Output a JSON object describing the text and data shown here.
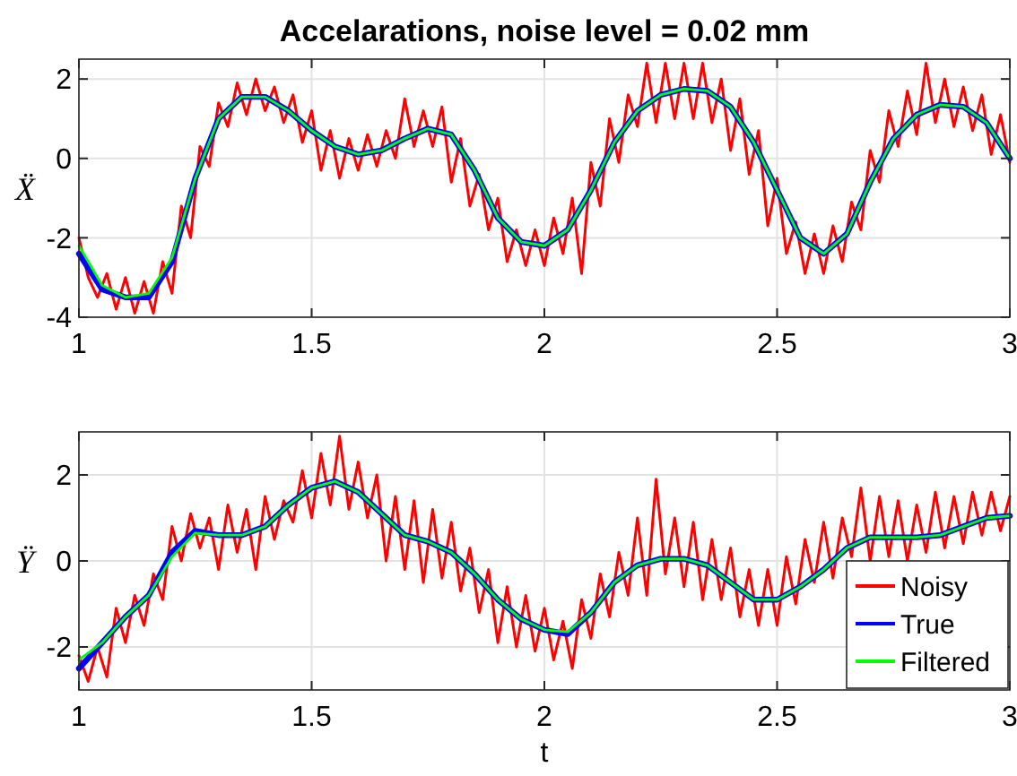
{
  "chart_data": [
    {
      "type": "line",
      "title": "Accelarations, noise level = 0.02 mm",
      "ylabel": "Ẍ",
      "xlim": [
        1,
        3
      ],
      "ylim": [
        -4,
        2.5
      ],
      "xticks": [
        1,
        1.5,
        2,
        2.5,
        3
      ],
      "yticks": [
        -4,
        -2,
        0,
        2
      ],
      "grid": true,
      "legend": false,
      "x": [
        1.0,
        1.05,
        1.1,
        1.15,
        1.2,
        1.25,
        1.3,
        1.35,
        1.4,
        1.45,
        1.5,
        1.55,
        1.6,
        1.65,
        1.7,
        1.75,
        1.8,
        1.85,
        1.9,
        1.95,
        2.0,
        2.05,
        2.1,
        2.15,
        2.2,
        2.25,
        2.3,
        2.35,
        2.4,
        2.45,
        2.5,
        2.55,
        2.6,
        2.65,
        2.7,
        2.75,
        2.8,
        2.85,
        2.9,
        2.95,
        3.0
      ],
      "series": [
        {
          "color": "#ff0000",
          "x": [
            1.0,
            1.02,
            1.04,
            1.06,
            1.08,
            1.1,
            1.12,
            1.14,
            1.16,
            1.18,
            1.2,
            1.22,
            1.24,
            1.26,
            1.28,
            1.3,
            1.32,
            1.34,
            1.36,
            1.38,
            1.4,
            1.42,
            1.44,
            1.46,
            1.48,
            1.5,
            1.52,
            1.54,
            1.56,
            1.58,
            1.6,
            1.62,
            1.64,
            1.66,
            1.68,
            1.7,
            1.72,
            1.74,
            1.76,
            1.78,
            1.8,
            1.82,
            1.84,
            1.86,
            1.88,
            1.9,
            1.92,
            1.94,
            1.96,
            1.98,
            2.0,
            2.02,
            2.04,
            2.06,
            2.08,
            2.1,
            2.12,
            2.14,
            2.16,
            2.18,
            2.2,
            2.22,
            2.24,
            2.26,
            2.28,
            2.3,
            2.32,
            2.34,
            2.36,
            2.38,
            2.4,
            2.42,
            2.44,
            2.46,
            2.48,
            2.5,
            2.52,
            2.54,
            2.56,
            2.58,
            2.6,
            2.62,
            2.64,
            2.66,
            2.68,
            2.7,
            2.72,
            2.74,
            2.76,
            2.78,
            2.8,
            2.82,
            2.84,
            2.86,
            2.88,
            2.9,
            2.92,
            2.94,
            2.96,
            2.98,
            3.0
          ],
          "values": [
            -2.0,
            -3.0,
            -3.5,
            -2.9,
            -3.8,
            -3.0,
            -3.9,
            -3.1,
            -3.9,
            -2.6,
            -3.4,
            -1.2,
            -2.0,
            0.3,
            -0.2,
            1.4,
            0.8,
            1.9,
            1.1,
            2.0,
            1.2,
            1.8,
            0.9,
            1.6,
            0.4,
            1.2,
            -0.3,
            0.7,
            -0.5,
            0.5,
            -0.3,
            0.6,
            -0.2,
            0.7,
            0.0,
            1.5,
            0.3,
            1.2,
            0.3,
            1.3,
            -0.6,
            0.5,
            -1.2,
            -0.4,
            -1.8,
            -1.0,
            -2.6,
            -1.8,
            -2.7,
            -1.8,
            -2.7,
            -1.5,
            -2.4,
            -1.0,
            -2.9,
            -0.1,
            -1.2,
            1.0,
            -0.1,
            1.6,
            0.8,
            2.4,
            0.9,
            2.4,
            1.0,
            2.4,
            1.0,
            2.4,
            0.9,
            2.0,
            0.2,
            1.5,
            -0.4,
            0.7,
            -1.7,
            -0.5,
            -2.4,
            -1.6,
            -2.9,
            -1.9,
            -2.9,
            -1.7,
            -2.6,
            -1.1,
            -1.8,
            0.2,
            -0.6,
            1.2,
            0.3,
            1.7,
            0.6,
            2.4,
            0.9,
            2.0,
            0.8,
            1.8,
            0.7,
            1.6,
            0.1,
            1.1,
            -0.1
          ]
        },
        {
          "color": "#0000ff",
          "values": [
            -2.4,
            -3.3,
            -3.5,
            -3.5,
            -2.6,
            -0.5,
            1.0,
            1.55,
            1.55,
            1.2,
            0.7,
            0.3,
            0.1,
            0.2,
            0.5,
            0.75,
            0.6,
            -0.3,
            -1.5,
            -2.1,
            -2.2,
            -1.8,
            -0.8,
            0.4,
            1.2,
            1.6,
            1.75,
            1.7,
            1.3,
            0.4,
            -0.8,
            -2.0,
            -2.4,
            -1.9,
            -0.6,
            0.5,
            1.1,
            1.35,
            1.3,
            0.9,
            0.0
          ]
        },
        {
          "color": "#00ff00",
          "values": [
            -2.2,
            -3.2,
            -3.5,
            -3.4,
            -2.5,
            -0.5,
            1.0,
            1.55,
            1.55,
            1.2,
            0.7,
            0.3,
            0.1,
            0.2,
            0.5,
            0.75,
            0.6,
            -0.3,
            -1.5,
            -2.1,
            -2.2,
            -1.8,
            -0.8,
            0.4,
            1.2,
            1.6,
            1.75,
            1.7,
            1.3,
            0.4,
            -0.8,
            -2.0,
            -2.4,
            -1.9,
            -0.6,
            0.5,
            1.1,
            1.35,
            1.3,
            0.9,
            0.0
          ]
        }
      ]
    },
    {
      "type": "line",
      "xlabel": "t",
      "ylabel": "Ÿ",
      "xlim": [
        1,
        3
      ],
      "ylim": [
        -3,
        3
      ],
      "xticks": [
        1,
        1.5,
        2,
        2.5,
        3
      ],
      "yticks": [
        -2,
        0,
        2
      ],
      "grid": true,
      "legend": "bottom right",
      "x": [
        1.0,
        1.05,
        1.1,
        1.15,
        1.2,
        1.25,
        1.3,
        1.35,
        1.4,
        1.45,
        1.5,
        1.55,
        1.6,
        1.65,
        1.7,
        1.75,
        1.8,
        1.85,
        1.9,
        1.95,
        2.0,
        2.05,
        2.1,
        2.15,
        2.2,
        2.25,
        2.3,
        2.35,
        2.4,
        2.45,
        2.5,
        2.55,
        2.6,
        2.65,
        2.7,
        2.75,
        2.8,
        2.85,
        2.9,
        2.95,
        3.0
      ],
      "series": [
        {
          "name": "Noisy",
          "color": "#ff0000",
          "x": [
            1.0,
            1.02,
            1.04,
            1.06,
            1.08,
            1.1,
            1.12,
            1.14,
            1.16,
            1.18,
            1.2,
            1.22,
            1.24,
            1.26,
            1.28,
            1.3,
            1.32,
            1.34,
            1.36,
            1.38,
            1.4,
            1.42,
            1.44,
            1.46,
            1.48,
            1.5,
            1.52,
            1.54,
            1.56,
            1.58,
            1.6,
            1.62,
            1.64,
            1.66,
            1.68,
            1.7,
            1.72,
            1.74,
            1.76,
            1.78,
            1.8,
            1.82,
            1.84,
            1.86,
            1.88,
            1.9,
            1.92,
            1.94,
            1.96,
            1.98,
            2.0,
            2.02,
            2.04,
            2.06,
            2.08,
            2.1,
            2.12,
            2.14,
            2.16,
            2.18,
            2.2,
            2.22,
            2.24,
            2.26,
            2.28,
            2.3,
            2.32,
            2.34,
            2.36,
            2.38,
            2.4,
            2.42,
            2.44,
            2.46,
            2.48,
            2.5,
            2.52,
            2.54,
            2.56,
            2.58,
            2.6,
            2.62,
            2.64,
            2.66,
            2.68,
            2.7,
            2.72,
            2.74,
            2.76,
            2.78,
            2.8,
            2.82,
            2.84,
            2.86,
            2.88,
            2.9,
            2.92,
            2.94,
            2.96,
            2.98,
            3.0
          ],
          "values": [
            -2.2,
            -2.8,
            -2.0,
            -2.7,
            -1.1,
            -1.9,
            -0.8,
            -1.5,
            -0.3,
            -0.9,
            0.8,
            0.0,
            1.1,
            0.3,
            1.0,
            -0.2,
            1.3,
            0.2,
            1.2,
            -0.2,
            1.5,
            0.5,
            1.4,
            0.9,
            2.1,
            1.0,
            2.5,
            1.3,
            2.9,
            1.2,
            2.3,
            1.0,
            2.0,
            0.0,
            1.5,
            -0.2,
            1.4,
            -0.5,
            1.2,
            -0.4,
            0.9,
            -0.7,
            0.3,
            -1.2,
            -0.2,
            -1.9,
            -0.6,
            -2.0,
            -0.8,
            -2.1,
            -1.1,
            -2.3,
            -1.4,
            -2.5,
            -0.9,
            -1.8,
            -0.3,
            -1.3,
            0.2,
            -0.8,
            1.0,
            -0.8,
            1.9,
            -0.3,
            1.0,
            -0.6,
            0.9,
            -0.9,
            0.5,
            -0.9,
            0.3,
            -1.3,
            -0.2,
            -1.5,
            -0.2,
            -1.5,
            0.1,
            -1.0,
            0.5,
            -0.5,
            0.9,
            -0.4,
            1.0,
            0.1,
            1.7,
            0.0,
            1.5,
            0.1,
            1.4,
            0.0,
            1.3,
            0.2,
            1.6,
            0.3,
            1.5,
            0.4,
            1.6,
            0.6,
            1.6,
            0.7,
            1.5
          ]
        },
        {
          "name": "True",
          "color": "#0000ff",
          "values": [
            -2.5,
            -1.9,
            -1.3,
            -0.8,
            0.2,
            0.7,
            0.6,
            0.6,
            0.8,
            1.3,
            1.7,
            1.85,
            1.6,
            1.1,
            0.6,
            0.45,
            0.2,
            -0.3,
            -0.9,
            -1.35,
            -1.6,
            -1.7,
            -1.2,
            -0.5,
            -0.1,
            0.05,
            0.05,
            -0.1,
            -0.5,
            -0.9,
            -0.9,
            -0.6,
            -0.2,
            0.3,
            0.55,
            0.55,
            0.55,
            0.6,
            0.8,
            1.0,
            1.05
          ]
        },
        {
          "name": "Filtered",
          "color": "#00ff00",
          "values": [
            -2.3,
            -1.9,
            -1.3,
            -0.8,
            0.1,
            0.65,
            0.6,
            0.6,
            0.8,
            1.3,
            1.7,
            1.85,
            1.6,
            1.1,
            0.6,
            0.45,
            0.2,
            -0.3,
            -0.9,
            -1.35,
            -1.6,
            -1.65,
            -1.2,
            -0.5,
            -0.1,
            0.05,
            0.05,
            -0.1,
            -0.5,
            -0.9,
            -0.9,
            -0.6,
            -0.2,
            0.3,
            0.55,
            0.55,
            0.55,
            0.6,
            0.8,
            1.0,
            1.05
          ]
        }
      ]
    }
  ]
}
